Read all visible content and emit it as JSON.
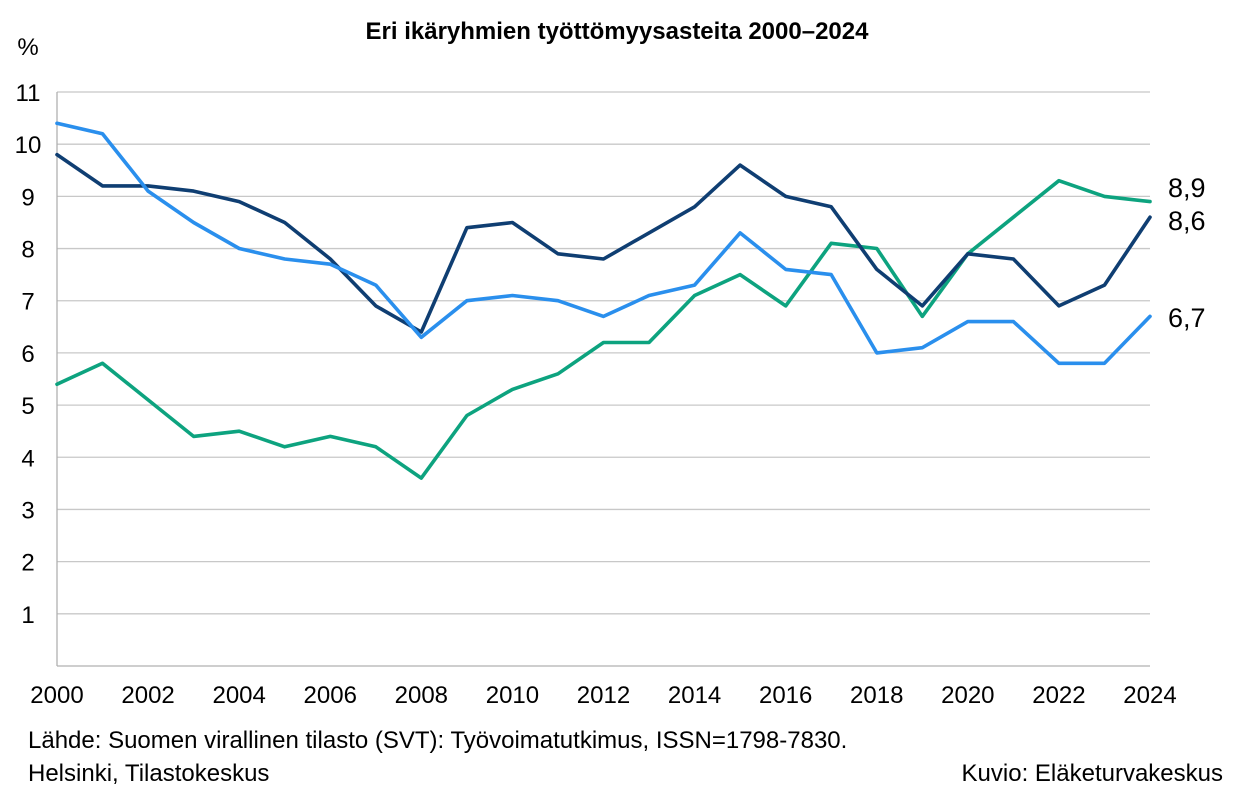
{
  "chart_data": {
    "type": "line",
    "title": "Eri ikäryhmien työttömyysasteita 2000–2024",
    "ylabel": "%",
    "xlabel": "",
    "x": [
      2000,
      2001,
      2002,
      2003,
      2004,
      2005,
      2006,
      2007,
      2008,
      2009,
      2010,
      2011,
      2012,
      2013,
      2014,
      2015,
      2016,
      2017,
      2018,
      2019,
      2020,
      2021,
      2022,
      2023,
      2024
    ],
    "x_ticks": [
      "2000",
      "2002",
      "2004",
      "2006",
      "2008",
      "2010",
      "2012",
      "2014",
      "2016",
      "2018",
      "2020",
      "2022",
      "2024"
    ],
    "y_ticks": [
      "1",
      "2",
      "3",
      "4",
      "5",
      "6",
      "7",
      "8",
      "9",
      "10",
      "11"
    ],
    "ylim": [
      0,
      11
    ],
    "grid": true,
    "legend": "none",
    "series": [
      {
        "color": "#0da37f",
        "values": [
          5.4,
          5.8,
          5.1,
          4.4,
          4.5,
          4.2,
          4.4,
          4.2,
          3.6,
          4.8,
          5.3,
          5.6,
          6.2,
          6.2,
          7.1,
          7.5,
          6.9,
          8.1,
          8.0,
          6.7,
          7.9,
          8.6,
          9.3,
          9.0,
          8.9
        ],
        "end_label": "8,9"
      },
      {
        "color": "#0f3e72",
        "values": [
          9.8,
          9.2,
          9.2,
          9.1,
          8.9,
          8.5,
          7.8,
          6.9,
          6.4,
          8.4,
          8.5,
          7.9,
          7.8,
          8.3,
          8.8,
          9.6,
          9.0,
          8.8,
          7.6,
          6.9,
          7.9,
          7.8,
          6.9,
          7.3,
          8.6
        ],
        "end_label": "8,6"
      },
      {
        "color": "#2a8fed",
        "values": [
          10.4,
          10.2,
          9.1,
          8.5,
          8.0,
          7.8,
          7.7,
          7.3,
          6.3,
          7.0,
          7.1,
          7.0,
          6.7,
          7.1,
          7.3,
          8.3,
          7.6,
          7.5,
          6.0,
          6.1,
          6.6,
          6.6,
          5.8,
          5.8,
          6.7
        ],
        "end_label": "6,7"
      }
    ],
    "axis_color": "#b0b0b0",
    "grid_color": "#c8c8c8"
  },
  "source": {
    "line1": "Lähde: Suomen virallinen tilasto (SVT): Työvoimatutkimus, ISSN=1798-7830.",
    "line2": "Helsinki, Tilastokeskus",
    "credit": "Kuvio: Eläketurvakeskus"
  }
}
